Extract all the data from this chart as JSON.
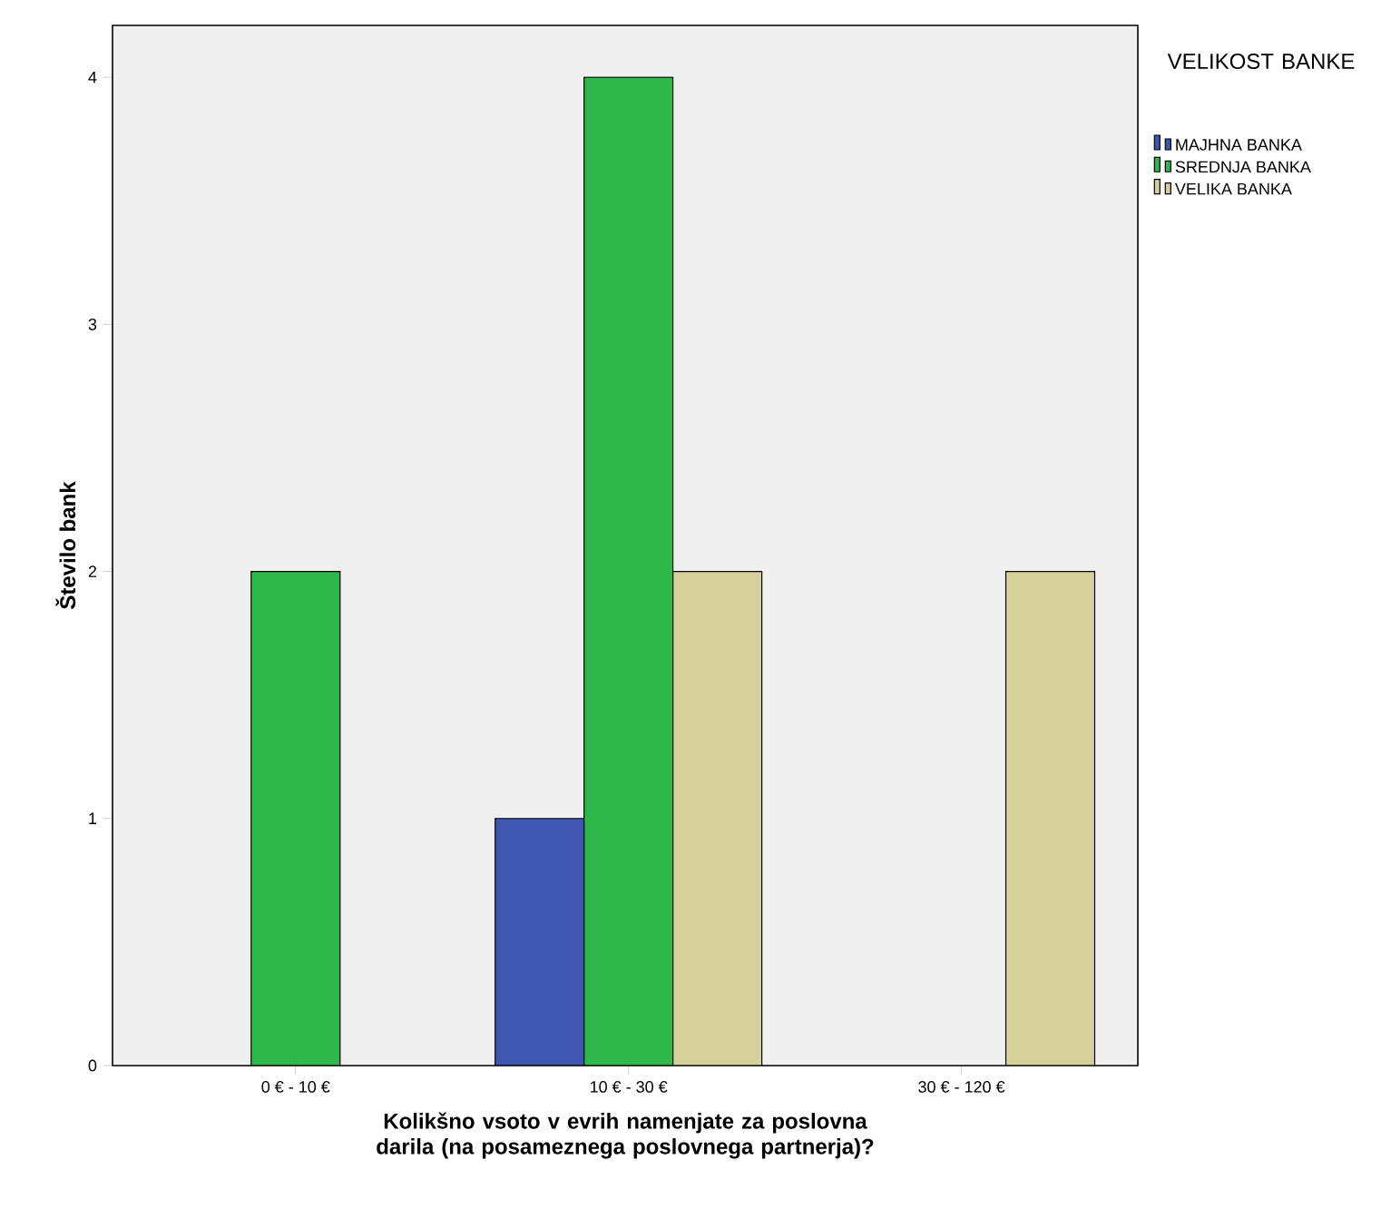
{
  "chart_data": {
    "type": "bar",
    "xlabel": "Kolikšno vsoto v evrih namenjate za poslovna darila (na posameznega poslovnega partnerja)?",
    "ylabel": "Število bank",
    "legend_title": "VELIKOST BANKE",
    "legend": "right",
    "grid": false,
    "categories": [
      "0 € - 10 €",
      "10 € - 30 €",
      "30 € - 120 €"
    ],
    "series": [
      {
        "name": "MAJHNA BANKA",
        "color": "#3d56b0",
        "values": [
          null,
          1,
          null
        ]
      },
      {
        "name": "SREDNJA BANKA",
        "color": "#2fb84a",
        "values": [
          2,
          4,
          null
        ]
      },
      {
        "name": "VELIKA BANKA",
        "color": "#d5d09a",
        "values": [
          null,
          2,
          2
        ]
      }
    ],
    "ylim": [
      0,
      4.21
    ],
    "yticks": [
      0,
      1,
      2,
      3,
      4
    ]
  }
}
